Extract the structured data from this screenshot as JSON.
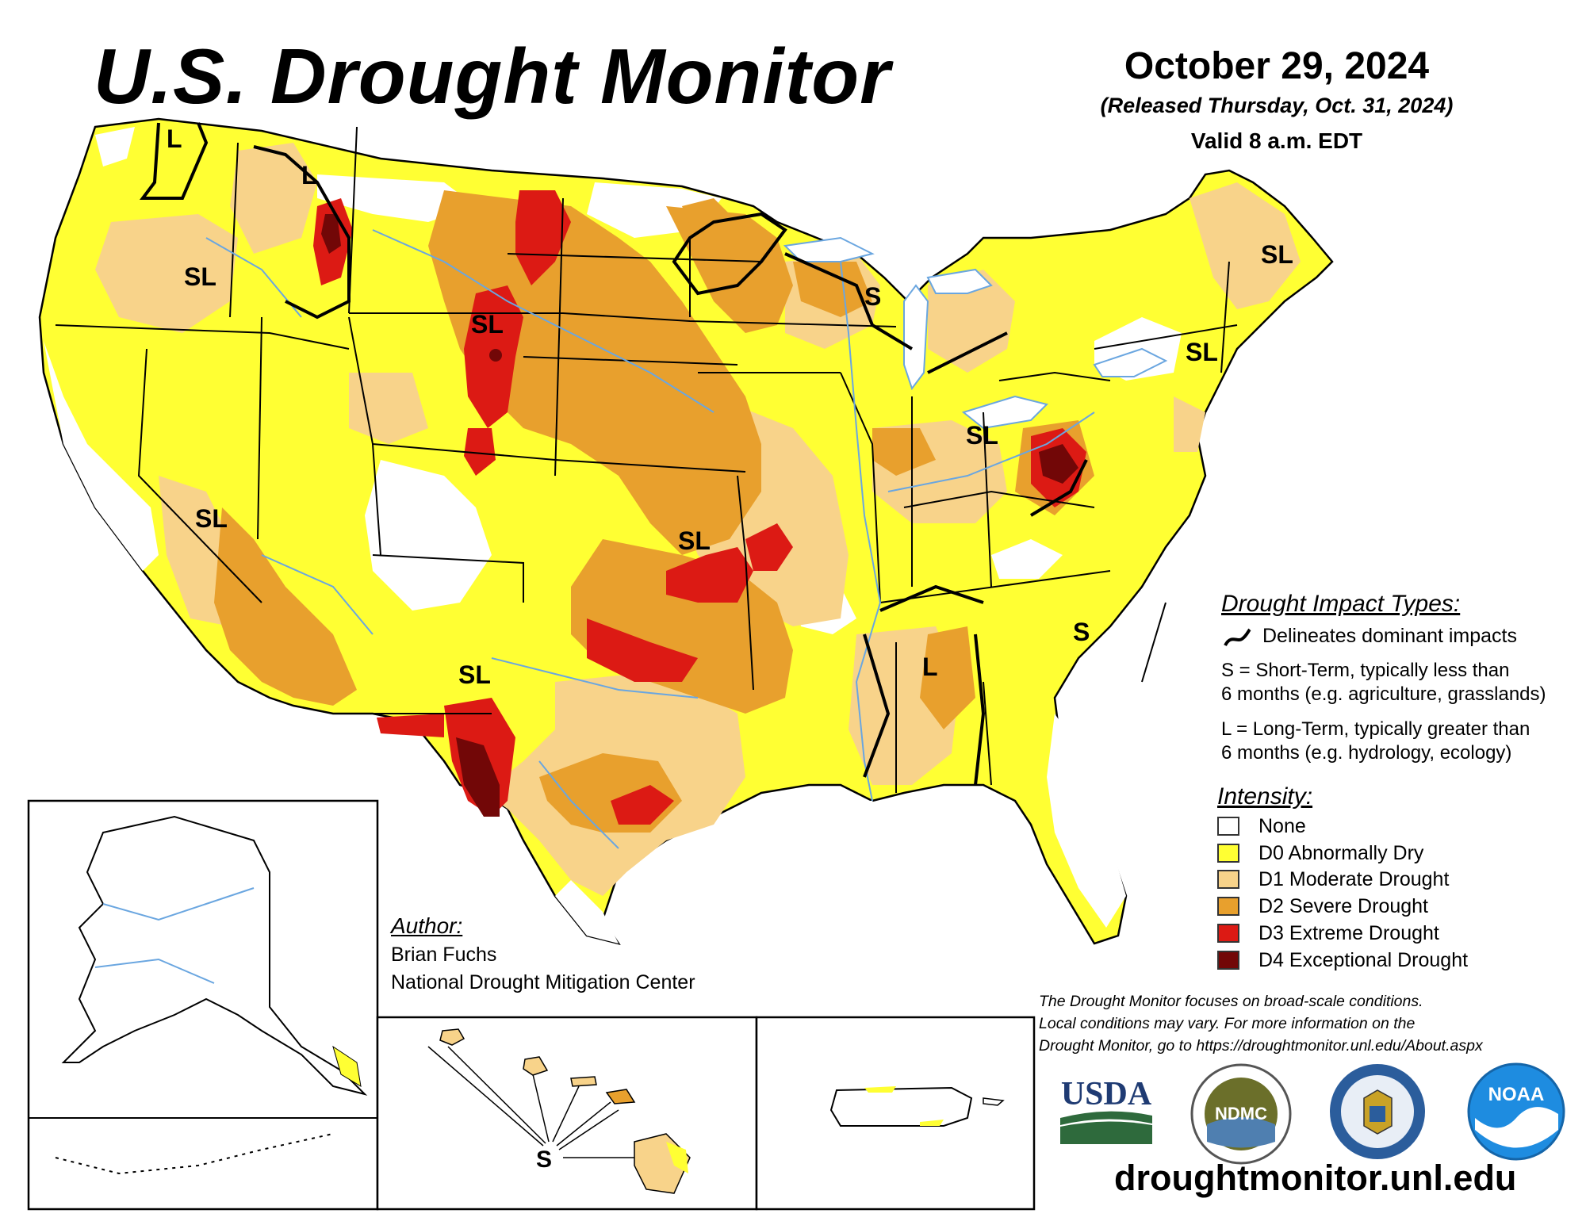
{
  "header": {
    "title": "U.S. Drought Monitor",
    "date": "October 29, 2024",
    "released": "(Released Thursday, Oct. 31, 2024)",
    "valid": "Valid 8 a.m. EDT"
  },
  "map_labels": {
    "L_washington": "L",
    "L_idaho": "L",
    "SL_oregon": "SL",
    "SL_wyoming": "SL",
    "S_wisconsin": "S",
    "SL_maine": "SL",
    "SL_newyork": "SL",
    "SL_ohio": "SL",
    "SL_nevada": "SL",
    "SL_kansas": "SL",
    "SL_newmexico": "SL",
    "S_georgia": "S",
    "L_mississippi": "L",
    "S_hawaii": "S"
  },
  "impact_types": {
    "title": "Drought Impact Types:",
    "delineates": "Delineates dominant impacts",
    "short_term_1": "S = Short-Term, typically less than",
    "short_term_2": "6 months (e.g. agriculture, grasslands)",
    "long_term_1": "L = Long-Term, typically greater than",
    "long_term_2": "6 months (e.g. hydrology, ecology)"
  },
  "intensity": {
    "title": "Intensity:",
    "levels": [
      {
        "label": "None",
        "color": "#ffffff"
      },
      {
        "label": "D0 Abnormally Dry",
        "color": "#ffff33"
      },
      {
        "label": "D1 Moderate Drought",
        "color": "#f8d38a"
      },
      {
        "label": "D2 Severe Drought",
        "color": "#e8a02d"
      },
      {
        "label": "D3 Extreme Drought",
        "color": "#dc1a14"
      },
      {
        "label": "D4 Exceptional Drought",
        "color": "#720707"
      }
    ]
  },
  "author": {
    "title": "Author:",
    "name": "Brian Fuchs",
    "org": "National Drought Mitigation Center"
  },
  "note": {
    "line1": "The Drought Monitor focuses on broad-scale conditions.",
    "line2": "Local conditions may vary. For more information on the",
    "line3": "Drought Monitor, go to https://droughtmonitor.unl.edu/About.aspx"
  },
  "logos": {
    "usda": "USDA",
    "ndmc": "NDMC",
    "noaa": "NOAA"
  },
  "website": "droughtmonitor.unl.edu",
  "colors": {
    "none": "#ffffff",
    "d0": "#ffff33",
    "d1": "#f8d38a",
    "d2": "#e8a02d",
    "d3": "#dc1a14",
    "d4": "#720707",
    "water": "#6aa6e0"
  }
}
